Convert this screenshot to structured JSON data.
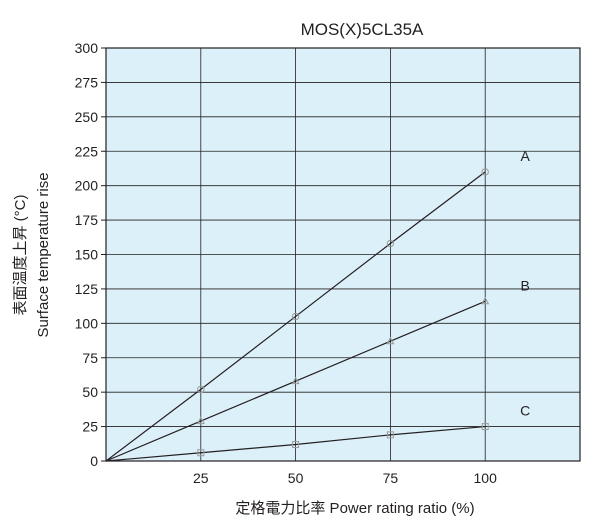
{
  "chart_data": {
    "type": "line",
    "title": "MOS(X)5CL35A",
    "xlabel": "定格電力比率 Power rating ratio (%)",
    "ylabel_jp": "表面温度上昇 (°C)",
    "ylabel_en": "Surface temperature rise",
    "x_ticks": [
      25,
      50,
      75,
      100
    ],
    "y_ticks": [
      0,
      25,
      50,
      75,
      100,
      125,
      150,
      175,
      200,
      225,
      250,
      275,
      300
    ],
    "xlim": [
      0,
      125
    ],
    "ylim": [
      0,
      300
    ],
    "grid": true,
    "legend": "inline labels at line ends",
    "series": [
      {
        "name": "A",
        "marker": "circle",
        "x": [
          0,
          25,
          50,
          75,
          100
        ],
        "y": [
          0,
          52,
          105,
          158,
          210
        ]
      },
      {
        "name": "B",
        "marker": "triangle",
        "x": [
          0,
          25,
          50,
          75,
          100
        ],
        "y": [
          0,
          29,
          58,
          87,
          116
        ]
      },
      {
        "name": "C",
        "marker": "square",
        "x": [
          0,
          25,
          50,
          75,
          100
        ],
        "y": [
          0,
          6,
          12,
          19,
          25
        ]
      }
    ],
    "colors": {
      "plot_background": "#dcf0fa",
      "grid": "#231f20",
      "line": "#231f20",
      "marker": "#9a9a9a"
    }
  }
}
